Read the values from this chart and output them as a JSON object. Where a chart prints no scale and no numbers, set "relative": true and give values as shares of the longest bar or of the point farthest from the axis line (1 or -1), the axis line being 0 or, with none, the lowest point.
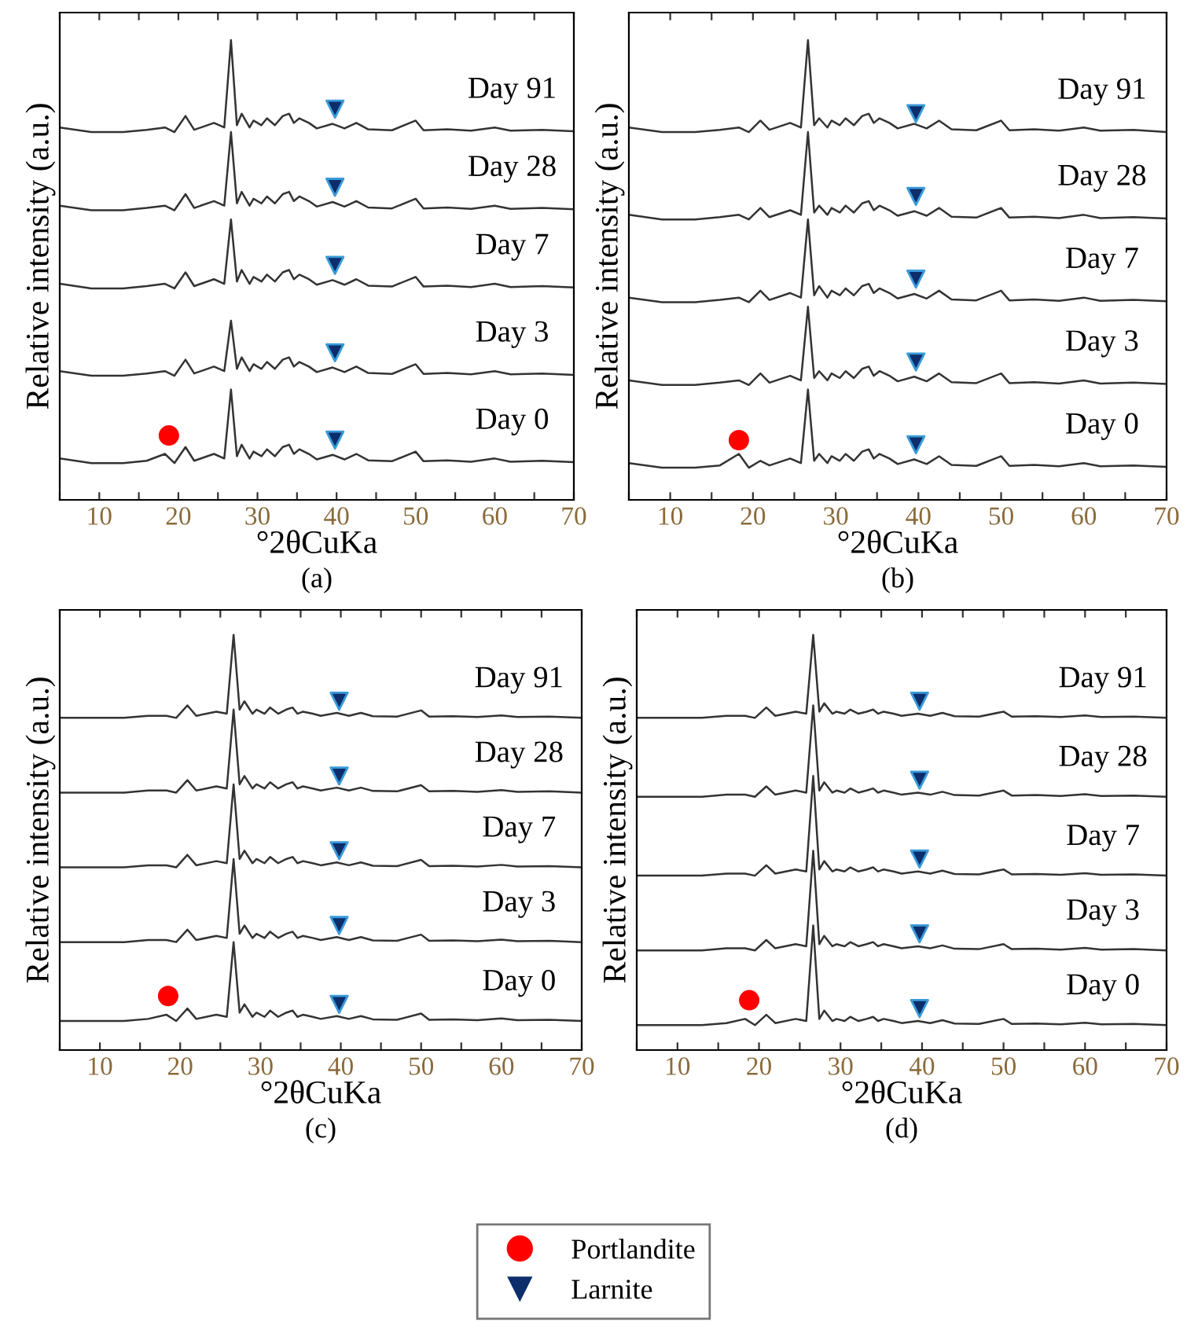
{
  "chart_data": [
    {
      "type": "line",
      "title": "(a)",
      "xlabel": "°2θCuKa",
      "ylabel": "Relative intensity (a.u.)",
      "relative": true,
      "xlim": [
        5,
        70
      ],
      "xticks": [
        {
          "value": 5,
          "label": null
        },
        10,
        {
          "value": 15,
          "label": null
        },
        20,
        {
          "value": 25,
          "label": null
        },
        30,
        {
          "value": 35,
          "label": null
        },
        40,
        {
          "value": 45,
          "label": null
        },
        50,
        {
          "value": 55,
          "label": null
        },
        60,
        {
          "value": 65,
          "label": null
        },
        70
      ],
      "legend": "bottom",
      "x": [
        5,
        9,
        13,
        16,
        18.3,
        19.5,
        20.9,
        22,
        24.5,
        25.8,
        26.65,
        27.4,
        28,
        29,
        29.5,
        30.5,
        31.2,
        32.2,
        33.2,
        34,
        34.6,
        35.3,
        36.5,
        37.5,
        39.5,
        41,
        42.5,
        44,
        47,
        50,
        51,
        54,
        57,
        60,
        62,
        66,
        70
      ],
      "series": [
        {
          "color": "#333333",
          "values": [
            0.81,
            0.8,
            0.8,
            0.805,
            0.81,
            0.8,
            0.835,
            0.805,
            0.82,
            0.81,
            1.0,
            0.815,
            0.84,
            0.81,
            0.825,
            0.815,
            0.83,
            0.815,
            0.835,
            0.84,
            0.82,
            0.83,
            0.82,
            0.808,
            0.818,
            0.808,
            0.82,
            0.806,
            0.804,
            0.825,
            0.804,
            0.806,
            0.803,
            0.81,
            0.803,
            0.805,
            0.802
          ]
        },
        {
          "color": "#333333",
          "values": [
            0.64,
            0.63,
            0.63,
            0.635,
            0.64,
            0.63,
            0.665,
            0.635,
            0.65,
            0.64,
            0.8,
            0.645,
            0.67,
            0.64,
            0.655,
            0.645,
            0.66,
            0.645,
            0.665,
            0.67,
            0.65,
            0.66,
            0.65,
            0.638,
            0.648,
            0.638,
            0.65,
            0.636,
            0.634,
            0.655,
            0.634,
            0.636,
            0.633,
            0.64,
            0.633,
            0.635,
            0.632
          ]
        },
        {
          "color": "#333333",
          "values": [
            0.47,
            0.46,
            0.46,
            0.465,
            0.47,
            0.46,
            0.495,
            0.465,
            0.48,
            0.47,
            0.61,
            0.475,
            0.5,
            0.47,
            0.485,
            0.475,
            0.49,
            0.475,
            0.495,
            0.5,
            0.48,
            0.49,
            0.48,
            0.468,
            0.478,
            0.468,
            0.48,
            0.466,
            0.464,
            0.485,
            0.464,
            0.466,
            0.463,
            0.47,
            0.463,
            0.465,
            0.462
          ]
        },
        {
          "color": "#333333",
          "values": [
            0.28,
            0.27,
            0.27,
            0.275,
            0.28,
            0.27,
            0.305,
            0.275,
            0.29,
            0.28,
            0.39,
            0.285,
            0.31,
            0.28,
            0.295,
            0.285,
            0.3,
            0.285,
            0.305,
            0.31,
            0.29,
            0.3,
            0.29,
            0.278,
            0.288,
            0.278,
            0.29,
            0.276,
            0.274,
            0.295,
            0.274,
            0.276,
            0.273,
            0.28,
            0.273,
            0.275,
            0.272
          ]
        },
        {
          "color": "#333333",
          "values": [
            0.09,
            0.08,
            0.08,
            0.085,
            0.1,
            0.08,
            0.115,
            0.085,
            0.1,
            0.09,
            0.24,
            0.095,
            0.12,
            0.09,
            0.105,
            0.095,
            0.11,
            0.095,
            0.115,
            0.12,
            0.1,
            0.11,
            0.1,
            0.088,
            0.098,
            0.088,
            0.1,
            0.086,
            0.084,
            0.105,
            0.084,
            0.086,
            0.083,
            0.09,
            0.083,
            0.085,
            0.082
          ]
        },
        {
          "type": "scatter",
          "name": "Portlandite",
          "color": "#ff0000",
          "marker": "circle",
          "x": [
            18.8
          ],
          "values": [
            0.14
          ]
        },
        {
          "type": "scatter",
          "name": "Larnite",
          "color": "#0d2d6b",
          "marker": "triangle",
          "x": [
            39.8,
            39.8,
            39.8,
            39.8,
            39.8
          ],
          "values": [
            0.85,
            0.68,
            0.51,
            0.32,
            0.13
          ]
        }
      ],
      "annotations": [
        "Day 91",
        "Day 28",
        "Day 7",
        "Day 3",
        "Day 0"
      ]
    },
    {
      "type": "line",
      "title": "(b)",
      "xlabel": "°2θCuKa",
      "ylabel": "Relative intensity (a.u.)",
      "relative": true,
      "xlim": [
        5,
        70
      ],
      "xticks": [
        {
          "value": 5,
          "label": null
        },
        10,
        {
          "value": 15,
          "label": null
        },
        20,
        {
          "value": 25,
          "label": null
        },
        30,
        {
          "value": 35,
          "label": null
        },
        40,
        {
          "value": 45,
          "label": null
        },
        50,
        {
          "value": 55,
          "label": null
        },
        60,
        {
          "value": 65,
          "label": null
        },
        70
      ],
      "x": [
        5,
        9,
        13,
        16,
        18.3,
        19.5,
        20.9,
        22,
        24.5,
        25.8,
        26.65,
        27.4,
        28,
        29,
        29.5,
        30.5,
        31.2,
        32.2,
        33.2,
        34,
        34.6,
        35.3,
        36.5,
        37.5,
        39.5,
        41,
        42.5,
        44,
        47,
        50,
        51,
        54,
        57,
        60,
        62,
        66,
        70
      ],
      "series": [
        {
          "color": "#333333",
          "values": [
            0.81,
            0.8,
            0.8,
            0.805,
            0.81,
            0.8,
            0.825,
            0.805,
            0.82,
            0.81,
            1.0,
            0.815,
            0.83,
            0.81,
            0.825,
            0.815,
            0.83,
            0.815,
            0.835,
            0.84,
            0.82,
            0.83,
            0.82,
            0.808,
            0.818,
            0.808,
            0.825,
            0.806,
            0.804,
            0.825,
            0.804,
            0.806,
            0.803,
            0.81,
            0.803,
            0.805,
            0.8
          ]
        },
        {
          "color": "#333333",
          "values": [
            0.62,
            0.61,
            0.61,
            0.615,
            0.62,
            0.61,
            0.635,
            0.615,
            0.63,
            0.62,
            0.8,
            0.625,
            0.64,
            0.62,
            0.635,
            0.625,
            0.64,
            0.625,
            0.645,
            0.65,
            0.63,
            0.64,
            0.63,
            0.618,
            0.628,
            0.618,
            0.635,
            0.616,
            0.614,
            0.635,
            0.614,
            0.616,
            0.613,
            0.62,
            0.613,
            0.615,
            0.612
          ]
        },
        {
          "color": "#333333",
          "values": [
            0.44,
            0.43,
            0.43,
            0.435,
            0.44,
            0.43,
            0.455,
            0.435,
            0.45,
            0.44,
            0.61,
            0.445,
            0.465,
            0.44,
            0.455,
            0.445,
            0.46,
            0.445,
            0.465,
            0.47,
            0.45,
            0.46,
            0.45,
            0.438,
            0.448,
            0.438,
            0.455,
            0.436,
            0.434,
            0.455,
            0.434,
            0.436,
            0.433,
            0.44,
            0.433,
            0.435,
            0.432
          ]
        },
        {
          "color": "#333333",
          "values": [
            0.26,
            0.25,
            0.25,
            0.255,
            0.26,
            0.25,
            0.275,
            0.255,
            0.27,
            0.26,
            0.42,
            0.265,
            0.28,
            0.26,
            0.275,
            0.265,
            0.28,
            0.265,
            0.285,
            0.29,
            0.27,
            0.28,
            0.27,
            0.258,
            0.268,
            0.258,
            0.275,
            0.256,
            0.254,
            0.275,
            0.254,
            0.256,
            0.253,
            0.26,
            0.253,
            0.255,
            0.252
          ]
        },
        {
          "color": "#333333",
          "values": [
            0.08,
            0.07,
            0.07,
            0.075,
            0.1,
            0.07,
            0.085,
            0.075,
            0.09,
            0.08,
            0.24,
            0.085,
            0.1,
            0.08,
            0.095,
            0.085,
            0.1,
            0.085,
            0.105,
            0.11,
            0.09,
            0.1,
            0.09,
            0.078,
            0.088,
            0.078,
            0.095,
            0.076,
            0.074,
            0.095,
            0.074,
            0.076,
            0.073,
            0.08,
            0.073,
            0.075,
            0.072
          ]
        },
        {
          "type": "scatter",
          "name": "Portlandite",
          "color": "#ff0000",
          "marker": "circle",
          "x": [
            18.3
          ],
          "values": [
            0.13
          ]
        },
        {
          "type": "scatter",
          "name": "Larnite",
          "color": "#0d2d6b",
          "marker": "triangle",
          "x": [
            39.7,
            39.7,
            39.7,
            39.7,
            39.7
          ],
          "values": [
            0.84,
            0.66,
            0.48,
            0.3,
            0.12
          ]
        }
      ],
      "annotations": [
        "Day 91",
        "Day 28",
        "Day 7",
        "Day 3",
        "Day 0"
      ]
    },
    {
      "type": "line",
      "title": "(c)",
      "xlabel": "°2θCuKa",
      "ylabel": "Relative intensity (a.u.)",
      "relative": true,
      "xlim": [
        5,
        70
      ],
      "xticks": [
        {
          "value": 5,
          "label": null
        },
        10,
        {
          "value": 15,
          "label": null
        },
        20,
        {
          "value": 25,
          "label": null
        },
        30,
        {
          "value": 35,
          "label": null
        },
        40,
        {
          "value": 45,
          "label": null
        },
        50,
        {
          "value": 55,
          "label": null
        },
        60,
        {
          "value": 65,
          "label": null
        },
        70
      ],
      "x": [
        5,
        9,
        13,
        16,
        18.3,
        19.5,
        20.9,
        22,
        24.5,
        25.8,
        26.65,
        27.4,
        28,
        29,
        29.5,
        30.5,
        31.2,
        32.2,
        33.2,
        34,
        34.6,
        35.3,
        36.5,
        37.5,
        39.5,
        41,
        42.5,
        44,
        47,
        50,
        51,
        54,
        57,
        60,
        62,
        66,
        70
      ],
      "series": [
        {
          "color": "#333333",
          "values": [
            0.8,
            0.8,
            0.8,
            0.805,
            0.805,
            0.8,
            0.83,
            0.805,
            0.815,
            0.81,
            1.0,
            0.82,
            0.84,
            0.81,
            0.82,
            0.81,
            0.825,
            0.81,
            0.82,
            0.825,
            0.81,
            0.815,
            0.81,
            0.805,
            0.812,
            0.805,
            0.812,
            0.804,
            0.803,
            0.818,
            0.803,
            0.804,
            0.802,
            0.806,
            0.802,
            0.803,
            0.8
          ]
        },
        {
          "color": "#333333",
          "values": [
            0.62,
            0.62,
            0.62,
            0.625,
            0.625,
            0.62,
            0.65,
            0.625,
            0.635,
            0.63,
            0.82,
            0.64,
            0.66,
            0.63,
            0.64,
            0.63,
            0.645,
            0.63,
            0.64,
            0.645,
            0.63,
            0.635,
            0.63,
            0.625,
            0.632,
            0.625,
            0.632,
            0.624,
            0.623,
            0.638,
            0.623,
            0.624,
            0.622,
            0.626,
            0.622,
            0.623,
            0.62
          ]
        },
        {
          "color": "#333333",
          "values": [
            0.44,
            0.44,
            0.44,
            0.445,
            0.445,
            0.44,
            0.47,
            0.445,
            0.455,
            0.45,
            0.64,
            0.46,
            0.48,
            0.45,
            0.46,
            0.45,
            0.465,
            0.45,
            0.46,
            0.465,
            0.45,
            0.455,
            0.45,
            0.445,
            0.452,
            0.445,
            0.452,
            0.444,
            0.443,
            0.458,
            0.443,
            0.444,
            0.442,
            0.446,
            0.442,
            0.443,
            0.44
          ]
        },
        {
          "color": "#333333",
          "values": [
            0.26,
            0.26,
            0.26,
            0.265,
            0.265,
            0.26,
            0.29,
            0.265,
            0.275,
            0.27,
            0.46,
            0.28,
            0.3,
            0.27,
            0.28,
            0.27,
            0.285,
            0.27,
            0.28,
            0.285,
            0.27,
            0.275,
            0.27,
            0.265,
            0.272,
            0.265,
            0.272,
            0.264,
            0.263,
            0.278,
            0.263,
            0.264,
            0.262,
            0.266,
            0.262,
            0.263,
            0.26
          ]
        },
        {
          "color": "#333333",
          "values": [
            0.07,
            0.07,
            0.07,
            0.075,
            0.085,
            0.07,
            0.1,
            0.075,
            0.085,
            0.08,
            0.26,
            0.09,
            0.11,
            0.08,
            0.09,
            0.08,
            0.095,
            0.08,
            0.09,
            0.095,
            0.08,
            0.085,
            0.08,
            0.075,
            0.082,
            0.075,
            0.082,
            0.074,
            0.073,
            0.088,
            0.073,
            0.074,
            0.072,
            0.076,
            0.072,
            0.073,
            0.07
          ]
        },
        {
          "type": "scatter",
          "name": "Portlandite",
          "color": "#ff0000",
          "marker": "circle",
          "x": [
            18.5
          ],
          "values": [
            0.13
          ]
        },
        {
          "type": "scatter",
          "name": "Larnite",
          "color": "#0d2d6b",
          "marker": "triangle",
          "x": [
            39.8,
            39.8,
            39.8,
            39.8,
            39.8
          ],
          "values": [
            0.84,
            0.66,
            0.48,
            0.3,
            0.11
          ]
        }
      ],
      "annotations": [
        "Day 91",
        "Day 28",
        "Day 7",
        "Day 3",
        "Day 0"
      ]
    },
    {
      "type": "line",
      "title": "(d)",
      "xlabel": "°2θCuKa",
      "ylabel": "Relative intensity (a.u.)",
      "relative": true,
      "xlim": [
        5,
        70
      ],
      "xticks": [
        {
          "value": 5,
          "label": null
        },
        10,
        {
          "value": 15,
          "label": null
        },
        20,
        {
          "value": 25,
          "label": null
        },
        30,
        {
          "value": 35,
          "label": null
        },
        40,
        {
          "value": 45,
          "label": null
        },
        50,
        {
          "value": 55,
          "label": null
        },
        60,
        {
          "value": 65,
          "label": null
        },
        70
      ],
      "x": [
        5,
        9,
        13,
        16,
        18.3,
        19.5,
        20.9,
        22,
        24.5,
        25.8,
        26.65,
        27.4,
        28,
        29,
        29.5,
        30.5,
        31.2,
        32.2,
        33.2,
        34,
        34.6,
        35.3,
        36.5,
        37.5,
        39.5,
        41,
        42.5,
        44,
        47,
        50,
        51,
        54,
        57,
        60,
        62,
        66,
        70
      ],
      "series": [
        {
          "color": "#333333",
          "values": [
            0.8,
            0.8,
            0.8,
            0.805,
            0.805,
            0.8,
            0.825,
            0.805,
            0.815,
            0.81,
            1.0,
            0.815,
            0.835,
            0.81,
            0.815,
            0.81,
            0.82,
            0.81,
            0.815,
            0.82,
            0.81,
            0.815,
            0.81,
            0.805,
            0.81,
            0.805,
            0.812,
            0.804,
            0.803,
            0.815,
            0.803,
            0.804,
            0.802,
            0.806,
            0.802,
            0.803,
            0.8
          ]
        },
        {
          "color": "#333333",
          "values": [
            0.61,
            0.61,
            0.61,
            0.615,
            0.615,
            0.61,
            0.635,
            0.615,
            0.625,
            0.62,
            0.83,
            0.625,
            0.645,
            0.62,
            0.625,
            0.62,
            0.63,
            0.62,
            0.625,
            0.63,
            0.62,
            0.625,
            0.62,
            0.615,
            0.62,
            0.615,
            0.622,
            0.614,
            0.613,
            0.625,
            0.613,
            0.614,
            0.612,
            0.616,
            0.612,
            0.613,
            0.61
          ]
        },
        {
          "color": "#333333",
          "values": [
            0.42,
            0.42,
            0.42,
            0.425,
            0.425,
            0.42,
            0.445,
            0.425,
            0.435,
            0.43,
            0.66,
            0.435,
            0.455,
            0.43,
            0.435,
            0.43,
            0.44,
            0.43,
            0.435,
            0.44,
            0.43,
            0.435,
            0.43,
            0.425,
            0.43,
            0.425,
            0.432,
            0.424,
            0.423,
            0.435,
            0.423,
            0.424,
            0.422,
            0.426,
            0.422,
            0.423,
            0.42
          ]
        },
        {
          "color": "#333333",
          "values": [
            0.24,
            0.24,
            0.24,
            0.245,
            0.245,
            0.24,
            0.265,
            0.245,
            0.255,
            0.25,
            0.48,
            0.255,
            0.275,
            0.25,
            0.255,
            0.25,
            0.26,
            0.25,
            0.255,
            0.26,
            0.25,
            0.255,
            0.25,
            0.245,
            0.25,
            0.245,
            0.252,
            0.244,
            0.243,
            0.255,
            0.243,
            0.244,
            0.242,
            0.246,
            0.242,
            0.243,
            0.24
          ]
        },
        {
          "color": "#333333",
          "values": [
            0.06,
            0.06,
            0.06,
            0.065,
            0.075,
            0.06,
            0.085,
            0.065,
            0.075,
            0.07,
            0.3,
            0.075,
            0.095,
            0.07,
            0.075,
            0.07,
            0.08,
            0.07,
            0.075,
            0.08,
            0.07,
            0.075,
            0.07,
            0.065,
            0.07,
            0.065,
            0.072,
            0.064,
            0.063,
            0.075,
            0.063,
            0.064,
            0.062,
            0.066,
            0.062,
            0.063,
            0.06
          ]
        },
        {
          "type": "scatter",
          "name": "Portlandite",
          "color": "#ff0000",
          "marker": "circle",
          "x": [
            18.8
          ],
          "values": [
            0.12
          ]
        },
        {
          "type": "scatter",
          "name": "Larnite",
          "color": "#0d2d6b",
          "marker": "triangle",
          "x": [
            39.7,
            39.7,
            39.7,
            39.7,
            39.7
          ],
          "values": [
            0.84,
            0.65,
            0.46,
            0.28,
            0.1
          ]
        }
      ],
      "annotations": [
        "Day 91",
        "Day 28",
        "Day 7",
        "Day 3",
        "Day 0"
      ]
    }
  ]
}
